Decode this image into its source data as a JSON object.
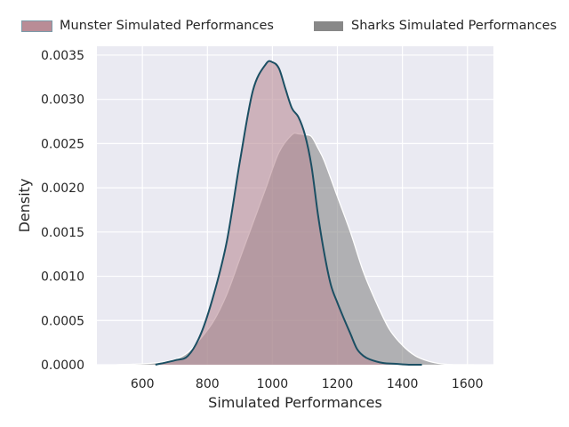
{
  "chart_data": {
    "type": "area",
    "title": "",
    "xlabel": "Simulated Performances",
    "ylabel": "Density",
    "xlim": [
      460,
      1680
    ],
    "ylim": [
      0,
      0.0036
    ],
    "xticks": [
      600,
      800,
      1000,
      1200,
      1400,
      1600
    ],
    "yticks": [
      0.0,
      0.0005,
      0.001,
      0.0015,
      0.002,
      0.0025,
      0.003,
      0.0035
    ],
    "ytick_labels": [
      "0.0000",
      "0.0005",
      "0.0010",
      "0.0015",
      "0.0020",
      "0.0025",
      "0.0030",
      "0.0035"
    ],
    "grid": true,
    "legend_position": "top",
    "series": [
      {
        "name": "Munster Simulated Performances",
        "fill": "#b98c96",
        "line": "#1b4f63",
        "x": [
          640,
          700,
          740,
          780,
          820,
          860,
          900,
          940,
          980,
          1000,
          1020,
          1040,
          1060,
          1080,
          1100,
          1120,
          1140,
          1160,
          1180,
          1200,
          1220,
          1240,
          1260,
          1280,
          1300,
          1340,
          1380,
          1420,
          1460
        ],
        "y": [
          0.0,
          5e-05,
          0.0001,
          0.00035,
          0.0008,
          0.0014,
          0.0023,
          0.0031,
          0.0034,
          0.00342,
          0.00335,
          0.00312,
          0.0029,
          0.0028,
          0.0026,
          0.00225,
          0.0017,
          0.00125,
          0.0009,
          0.0007,
          0.00052,
          0.00035,
          0.00018,
          0.0001,
          6e-05,
          2e-05,
          1e-05,
          0.0,
          0.0
        ]
      },
      {
        "name": "Sharks Simulated Performances",
        "fill": "#888888",
        "line": "#ffffff",
        "x": [
          520,
          600,
          660,
          700,
          740,
          780,
          820,
          860,
          900,
          940,
          980,
          1020,
          1060,
          1080,
          1100,
          1120,
          1140,
          1160,
          1200,
          1240,
          1280,
          1320,
          1360,
          1400,
          1440,
          1480,
          1520,
          1560,
          1620
        ],
        "y": [
          0.0,
          1e-05,
          3e-05,
          6e-05,
          0.00014,
          0.0003,
          0.0005,
          0.0008,
          0.0012,
          0.0016,
          0.002,
          0.0024,
          0.0026,
          0.00261,
          0.0026,
          0.00258,
          0.00245,
          0.0023,
          0.0019,
          0.0015,
          0.00105,
          0.0007,
          0.0004,
          0.00022,
          0.0001,
          4e-05,
          1e-05,
          0.0,
          0.0
        ]
      }
    ]
  }
}
